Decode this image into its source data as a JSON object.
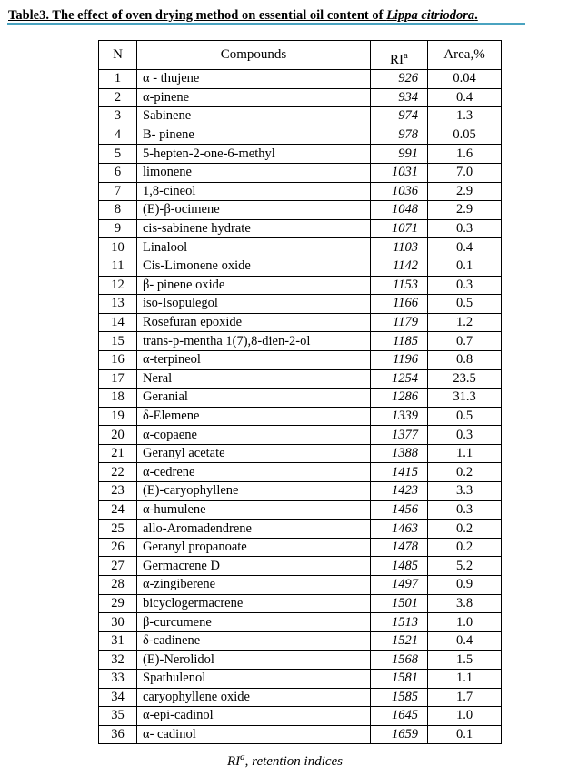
{
  "title": {
    "prefix": "Table3. The effect of oven drying method on essential oil content of ",
    "species": "Lippa citriodora",
    "suffix": "."
  },
  "header": {
    "n": "N",
    "compounds": "Compounds",
    "ri": "RI",
    "ri_sup": "a",
    "area": "Area,%"
  },
  "rows": [
    [
      "1",
      "α - thujene",
      "926",
      "0.04"
    ],
    [
      "2",
      "α-pinene",
      "934",
      "0.4"
    ],
    [
      "3",
      "Sabinene",
      "974",
      "1.3"
    ],
    [
      "4",
      "B- pinene",
      "978",
      "0.05"
    ],
    [
      "5",
      "5-hepten-2-one-6-methyl",
      "991",
      "1.6"
    ],
    [
      "6",
      "limonene",
      "1031",
      "7.0"
    ],
    [
      "7",
      "1,8-cineol",
      "1036",
      "2.9"
    ],
    [
      "8",
      "(E)-β-ocimene",
      "1048",
      "2.9"
    ],
    [
      "9",
      "cis-sabinene hydrate",
      "1071",
      "0.3"
    ],
    [
      "10",
      "Linalool",
      "1103",
      "0.4"
    ],
    [
      "11",
      "Cis-Limonene oxide",
      "1142",
      "0.1"
    ],
    [
      "12",
      "β- pinene oxide",
      "1153",
      "0.3"
    ],
    [
      "13",
      "iso-Isopulegol",
      "1166",
      "0.5"
    ],
    [
      "14",
      "Rosefuran epoxide",
      "1179",
      "1.2"
    ],
    [
      "15",
      "trans-p-mentha 1(7),8-dien-2-ol",
      "1185",
      "0.7"
    ],
    [
      "16",
      "α-terpineol",
      "1196",
      "0.8"
    ],
    [
      "17",
      "Neral",
      "1254",
      "23.5"
    ],
    [
      "18",
      "Geranial",
      "1286",
      "31.3"
    ],
    [
      "19",
      "δ-Elemene",
      "1339",
      "0.5"
    ],
    [
      "20",
      "α-copaene",
      "1377",
      "0.3"
    ],
    [
      "21",
      "Geranyl acetate",
      "1388",
      "1.1"
    ],
    [
      "22",
      "α-cedrene",
      "1415",
      "0.2"
    ],
    [
      "23",
      "(E)-caryophyllene",
      "1423",
      "3.3"
    ],
    [
      "24",
      "α-humulene",
      "1456",
      "0.3"
    ],
    [
      "25",
      "allo-Aromadendrene",
      "1463",
      "0.2"
    ],
    [
      "26",
      "Geranyl propanoate",
      "1478",
      "0.2"
    ],
    [
      "27",
      "Germacrene D",
      "1485",
      "5.2"
    ],
    [
      "28",
      "α-zingiberene",
      "1497",
      "0.9"
    ],
    [
      "29",
      "bicyclogermacrene",
      "1501",
      "3.8"
    ],
    [
      "30",
      "β-curcumene",
      "1513",
      "1.0"
    ],
    [
      "31",
      "δ-cadinene",
      "1521",
      "0.4"
    ],
    [
      "32",
      "(E)-Nerolidol",
      "1568",
      "1.5"
    ],
    [
      "33",
      "Spathulenol",
      "1581",
      "1.1"
    ],
    [
      "34",
      "caryophyllene oxide",
      "1585",
      "1.7"
    ],
    [
      "35",
      "α-epi-cadinol",
      "1645",
      "1.0"
    ],
    [
      "36",
      "α- cadinol",
      "1659",
      "0.1"
    ]
  ],
  "caption": {
    "ri": "RI",
    "sup": "a",
    "text": ", retention indices"
  },
  "colors": {
    "title_rule": "#4aa3c0"
  }
}
